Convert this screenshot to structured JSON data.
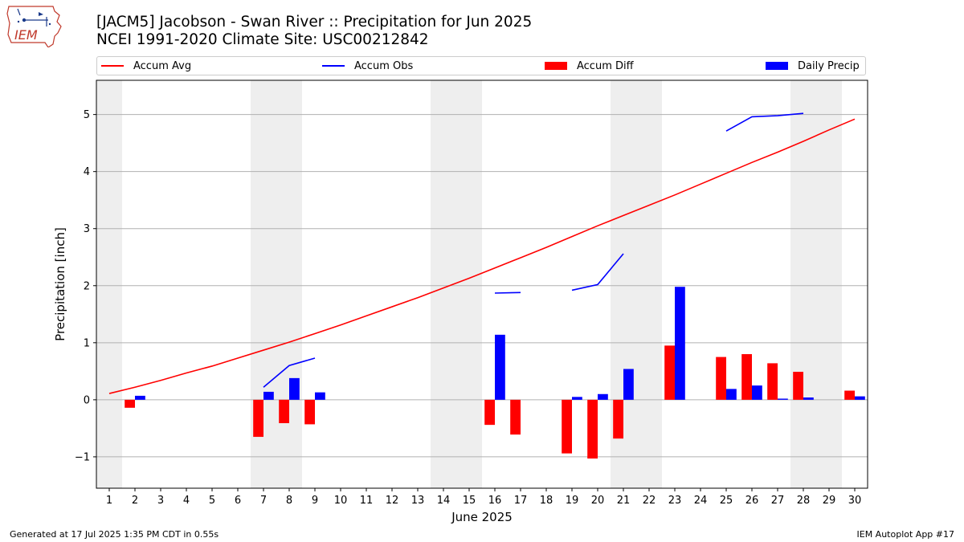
{
  "logo_text": "IEM",
  "title_line1": "[JACM5] Jacobson - Swan River :: Precipitation for Jun 2025",
  "title_line2": "NCEI 1991-2020 Climate Site: USC00212842",
  "footer_left": "Generated at 17 Jul 2025 1:35 PM CDT in 0.55s",
  "footer_right": "IEM Autoplot App #17",
  "colors": {
    "avg": "#ff0000",
    "obs": "#0000ff",
    "diff": "#ff0000",
    "daily": "#0000ff",
    "weekend_band": "#eeeeee",
    "grid": "#b0b0b0"
  },
  "chart_data": {
    "type": "bar",
    "xlabel": "June 2025",
    "ylabel": "Precipitation [inch]",
    "xlim": [
      0.5,
      30.5
    ],
    "ylim": [
      -1.55,
      5.6
    ],
    "grid": "horizontal",
    "legend_placement": "top",
    "x_ticks": [
      1,
      2,
      3,
      4,
      5,
      6,
      7,
      8,
      9,
      10,
      11,
      12,
      13,
      14,
      15,
      16,
      17,
      18,
      19,
      20,
      21,
      22,
      23,
      24,
      25,
      26,
      27,
      28,
      29,
      30
    ],
    "x_tick_labels": [
      "1",
      "2",
      "3",
      "4",
      "5",
      "6",
      "7",
      "8",
      "9",
      "10",
      "11",
      "12",
      "13",
      "14",
      "15",
      "16",
      "17",
      "18",
      "19",
      "20",
      "21",
      "22",
      "23",
      "24",
      "25",
      "26",
      "27",
      "28",
      "29",
      "30"
    ],
    "y_ticks": [
      -1,
      0,
      1,
      2,
      3,
      4,
      5
    ],
    "y_tick_labels": [
      "−1",
      "0",
      "1",
      "2",
      "3",
      "4",
      "5"
    ],
    "weekend_bands": [
      [
        0.5,
        1.5
      ],
      [
        6.5,
        8.5
      ],
      [
        13.5,
        15.5
      ],
      [
        20.5,
        22.5
      ],
      [
        27.5,
        29.5
      ]
    ],
    "legend": [
      "Accum Avg",
      "Accum Obs",
      "Accum Diff",
      "Daily Precip"
    ],
    "series": [
      {
        "name": "Accum Avg",
        "kind": "line",
        "color": "#ff0000",
        "values": [
          0.11,
          0.22,
          0.34,
          0.47,
          0.59,
          0.73,
          0.87,
          1.01,
          1.16,
          1.31,
          1.47,
          1.63,
          1.79,
          1.96,
          2.13,
          2.31,
          2.49,
          2.67,
          2.86,
          3.05,
          3.23,
          3.41,
          3.59,
          3.78,
          3.97,
          4.16,
          4.34,
          4.53,
          4.73,
          4.92
        ]
      },
      {
        "name": "Accum Obs",
        "kind": "line",
        "color": "#0000ff",
        "values": [
          null,
          null,
          null,
          null,
          null,
          null,
          0.22,
          0.6,
          0.73,
          null,
          null,
          null,
          null,
          null,
          null,
          1.87,
          1.88,
          null,
          1.92,
          2.02,
          2.56,
          null,
          null,
          null,
          4.71,
          4.96,
          4.98,
          5.02,
          null,
          null
        ]
      },
      {
        "name": "Accum Diff",
        "kind": "bar",
        "color": "#ff0000",
        "values": [
          null,
          -0.14,
          null,
          null,
          null,
          null,
          -0.65,
          -0.41,
          -0.43,
          null,
          null,
          null,
          null,
          null,
          null,
          -0.44,
          -0.61,
          null,
          -0.94,
          -1.03,
          -0.68,
          null,
          0.95,
          null,
          0.75,
          0.8,
          0.64,
          0.49,
          null,
          0.16
        ]
      },
      {
        "name": "Daily Precip",
        "kind": "bar",
        "color": "#0000ff",
        "values": [
          null,
          0.07,
          null,
          null,
          null,
          null,
          0.14,
          0.38,
          0.13,
          null,
          null,
          null,
          null,
          null,
          null,
          1.14,
          null,
          null,
          0.05,
          0.1,
          0.54,
          null,
          1.98,
          null,
          0.19,
          0.25,
          0.02,
          0.04,
          null,
          0.06
        ]
      }
    ]
  }
}
